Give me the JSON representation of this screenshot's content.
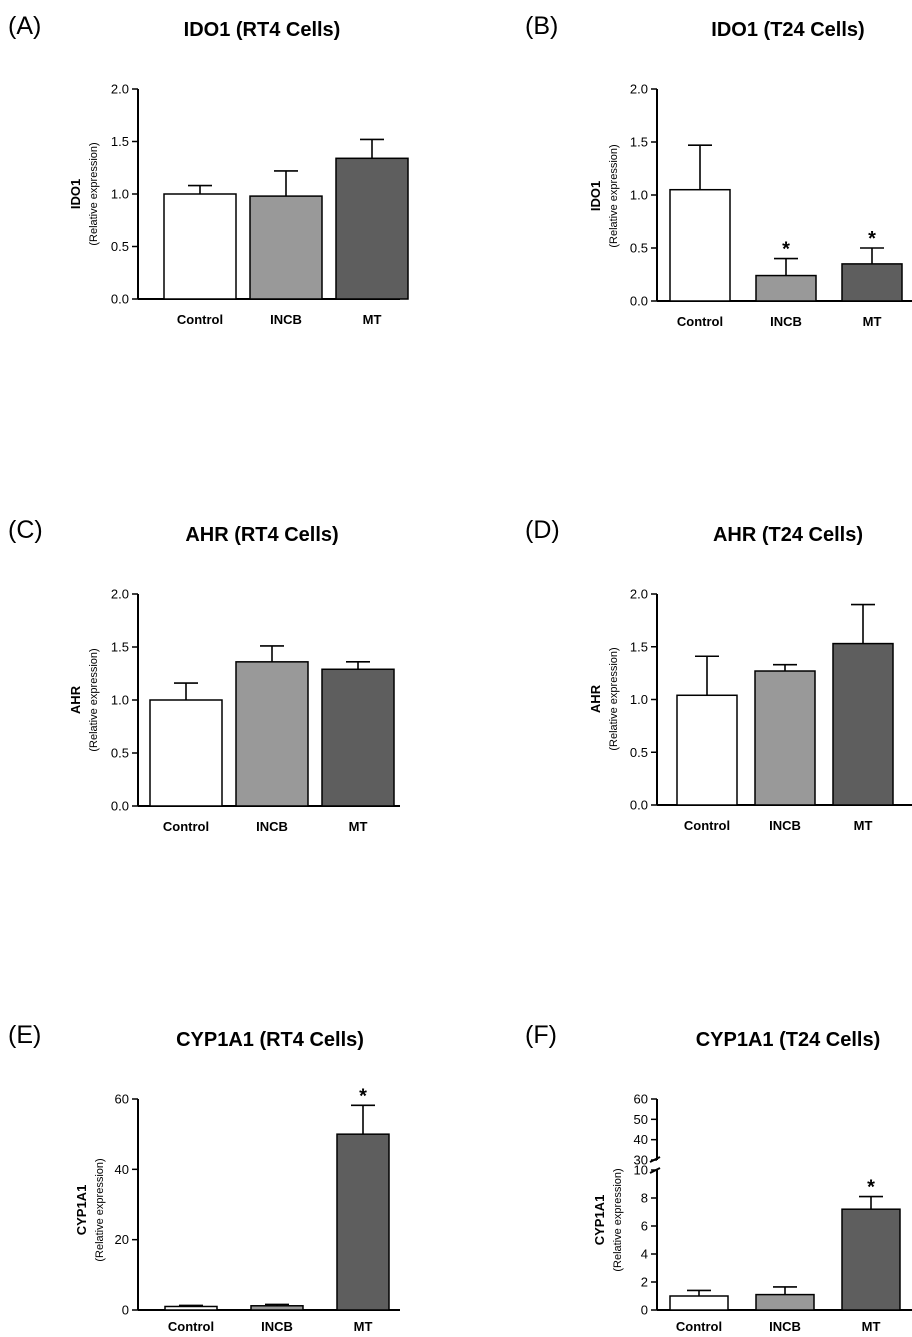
{
  "colors": {
    "Control": "#ffffff",
    "INCB": "#999999",
    "MT": "#5e5e5e"
  },
  "chart_data": [
    {
      "type": "bar",
      "panel": "(A)",
      "title": "IDO1 (RT4 Cells)",
      "ylabel": "IDO1",
      "ylabel_sub": "(Relative expression)",
      "categories": [
        "Control",
        "INCB",
        "MT"
      ],
      "values": [
        1.0,
        0.98,
        1.34
      ],
      "errors": [
        0.08,
        0.24,
        0.18
      ],
      "significance": [
        "",
        "",
        ""
      ],
      "ylim": [
        0,
        2.0
      ],
      "yticks": [
        "0.0",
        "0.5",
        "1.0",
        "1.5",
        "2.0"
      ],
      "grid": false
    },
    {
      "type": "bar",
      "panel": "(B)",
      "title": "IDO1 (T24 Cells)",
      "ylabel": "IDO1",
      "ylabel_sub": "(Relative expression)",
      "categories": [
        "Control",
        "INCB",
        "MT"
      ],
      "values": [
        1.05,
        0.24,
        0.35
      ],
      "errors": [
        0.42,
        0.16,
        0.15
      ],
      "significance": [
        "",
        "*",
        "*"
      ],
      "ylim": [
        0,
        2.0
      ],
      "yticks": [
        "0.0",
        "0.5",
        "1.0",
        "1.5",
        "2.0"
      ],
      "grid": false
    },
    {
      "type": "bar",
      "panel": "(C)",
      "title": "AHR (RT4 Cells)",
      "ylabel": "AHR",
      "ylabel_sub": "(Relative expression)",
      "categories": [
        "Control",
        "INCB",
        "MT"
      ],
      "values": [
        1.0,
        1.36,
        1.29
      ],
      "errors": [
        0.16,
        0.15,
        0.07
      ],
      "significance": [
        "",
        "",
        ""
      ],
      "ylim": [
        0,
        2.0
      ],
      "yticks": [
        "0.0",
        "0.5",
        "1.0",
        "1.5",
        "2.0"
      ],
      "grid": false
    },
    {
      "type": "bar",
      "panel": "(D)",
      "title": "AHR (T24 Cells)",
      "ylabel": "AHR",
      "ylabel_sub": "(Relative expression)",
      "categories": [
        "Control",
        "INCB",
        "MT"
      ],
      "values": [
        1.04,
        1.27,
        1.53
      ],
      "errors": [
        0.37,
        0.06,
        0.37
      ],
      "significance": [
        "",
        "",
        ""
      ],
      "ylim": [
        0,
        2.0
      ],
      "yticks": [
        "0.0",
        "0.5",
        "1.0",
        "1.5",
        "2.0"
      ],
      "grid": false
    },
    {
      "type": "bar",
      "panel": "(E)",
      "title": "CYP1A1 (RT4 Cells)",
      "ylabel": "CYP1A1",
      "ylabel_sub": "(Relative expression)",
      "categories": [
        "Control",
        "INCB",
        "MT"
      ],
      "values": [
        1.0,
        1.2,
        50.0
      ],
      "errors": [
        0.3,
        0.4,
        8.2
      ],
      "significance": [
        "",
        "",
        "*"
      ],
      "ylim": [
        0,
        60
      ],
      "yticks": [
        "0",
        "20",
        "40",
        "60"
      ],
      "grid": false
    },
    {
      "type": "bar",
      "panel": "(F)",
      "title": "CYP1A1 (T24 Cells)",
      "ylabel": "CYP1A1",
      "ylabel_sub": "(Relative expression)",
      "categories": [
        "Control",
        "INCB",
        "MT"
      ],
      "values": [
        1.0,
        1.1,
        7.2
      ],
      "errors": [
        0.4,
        0.55,
        0.9
      ],
      "significance": [
        "",
        "",
        "*"
      ],
      "ylim": [
        0,
        60
      ],
      "axis_break": [
        10,
        30
      ],
      "yticks": [
        "0",
        "2",
        "4",
        "6",
        "8",
        "10",
        "30",
        "40",
        "50",
        "60"
      ],
      "grid": false
    }
  ]
}
